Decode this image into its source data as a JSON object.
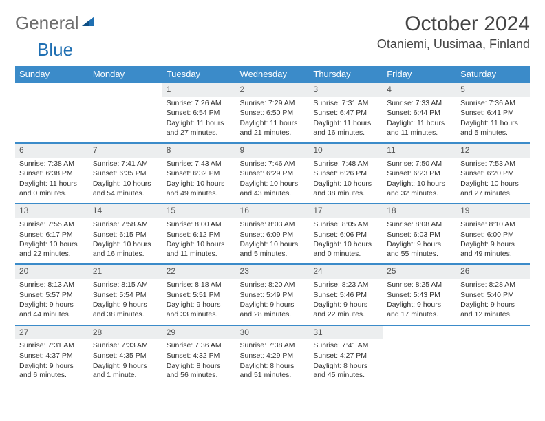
{
  "logo": {
    "part1": "General",
    "part2": "Blue"
  },
  "title": "October 2024",
  "location": "Otaniemi, Uusimaa, Finland",
  "colors": {
    "header_bg": "#3b8bc9",
    "header_text": "#ffffff",
    "daynum_bg": "#eceeef",
    "border": "#3b8bc9",
    "logo_gray": "#6d6d6d",
    "logo_blue": "#1f6fb2"
  },
  "day_headers": [
    "Sunday",
    "Monday",
    "Tuesday",
    "Wednesday",
    "Thursday",
    "Friday",
    "Saturday"
  ],
  "weeks": [
    [
      {
        "n": "",
        "sr": "",
        "ss": "",
        "dl": ""
      },
      {
        "n": "",
        "sr": "",
        "ss": "",
        "dl": ""
      },
      {
        "n": "1",
        "sr": "Sunrise: 7:26 AM",
        "ss": "Sunset: 6:54 PM",
        "dl": "Daylight: 11 hours and 27 minutes."
      },
      {
        "n": "2",
        "sr": "Sunrise: 7:29 AM",
        "ss": "Sunset: 6:50 PM",
        "dl": "Daylight: 11 hours and 21 minutes."
      },
      {
        "n": "3",
        "sr": "Sunrise: 7:31 AM",
        "ss": "Sunset: 6:47 PM",
        "dl": "Daylight: 11 hours and 16 minutes."
      },
      {
        "n": "4",
        "sr": "Sunrise: 7:33 AM",
        "ss": "Sunset: 6:44 PM",
        "dl": "Daylight: 11 hours and 11 minutes."
      },
      {
        "n": "5",
        "sr": "Sunrise: 7:36 AM",
        "ss": "Sunset: 6:41 PM",
        "dl": "Daylight: 11 hours and 5 minutes."
      }
    ],
    [
      {
        "n": "6",
        "sr": "Sunrise: 7:38 AM",
        "ss": "Sunset: 6:38 PM",
        "dl": "Daylight: 11 hours and 0 minutes."
      },
      {
        "n": "7",
        "sr": "Sunrise: 7:41 AM",
        "ss": "Sunset: 6:35 PM",
        "dl": "Daylight: 10 hours and 54 minutes."
      },
      {
        "n": "8",
        "sr": "Sunrise: 7:43 AM",
        "ss": "Sunset: 6:32 PM",
        "dl": "Daylight: 10 hours and 49 minutes."
      },
      {
        "n": "9",
        "sr": "Sunrise: 7:46 AM",
        "ss": "Sunset: 6:29 PM",
        "dl": "Daylight: 10 hours and 43 minutes."
      },
      {
        "n": "10",
        "sr": "Sunrise: 7:48 AM",
        "ss": "Sunset: 6:26 PM",
        "dl": "Daylight: 10 hours and 38 minutes."
      },
      {
        "n": "11",
        "sr": "Sunrise: 7:50 AM",
        "ss": "Sunset: 6:23 PM",
        "dl": "Daylight: 10 hours and 32 minutes."
      },
      {
        "n": "12",
        "sr": "Sunrise: 7:53 AM",
        "ss": "Sunset: 6:20 PM",
        "dl": "Daylight: 10 hours and 27 minutes."
      }
    ],
    [
      {
        "n": "13",
        "sr": "Sunrise: 7:55 AM",
        "ss": "Sunset: 6:17 PM",
        "dl": "Daylight: 10 hours and 22 minutes."
      },
      {
        "n": "14",
        "sr": "Sunrise: 7:58 AM",
        "ss": "Sunset: 6:15 PM",
        "dl": "Daylight: 10 hours and 16 minutes."
      },
      {
        "n": "15",
        "sr": "Sunrise: 8:00 AM",
        "ss": "Sunset: 6:12 PM",
        "dl": "Daylight: 10 hours and 11 minutes."
      },
      {
        "n": "16",
        "sr": "Sunrise: 8:03 AM",
        "ss": "Sunset: 6:09 PM",
        "dl": "Daylight: 10 hours and 5 minutes."
      },
      {
        "n": "17",
        "sr": "Sunrise: 8:05 AM",
        "ss": "Sunset: 6:06 PM",
        "dl": "Daylight: 10 hours and 0 minutes."
      },
      {
        "n": "18",
        "sr": "Sunrise: 8:08 AM",
        "ss": "Sunset: 6:03 PM",
        "dl": "Daylight: 9 hours and 55 minutes."
      },
      {
        "n": "19",
        "sr": "Sunrise: 8:10 AM",
        "ss": "Sunset: 6:00 PM",
        "dl": "Daylight: 9 hours and 49 minutes."
      }
    ],
    [
      {
        "n": "20",
        "sr": "Sunrise: 8:13 AM",
        "ss": "Sunset: 5:57 PM",
        "dl": "Daylight: 9 hours and 44 minutes."
      },
      {
        "n": "21",
        "sr": "Sunrise: 8:15 AM",
        "ss": "Sunset: 5:54 PM",
        "dl": "Daylight: 9 hours and 38 minutes."
      },
      {
        "n": "22",
        "sr": "Sunrise: 8:18 AM",
        "ss": "Sunset: 5:51 PM",
        "dl": "Daylight: 9 hours and 33 minutes."
      },
      {
        "n": "23",
        "sr": "Sunrise: 8:20 AM",
        "ss": "Sunset: 5:49 PM",
        "dl": "Daylight: 9 hours and 28 minutes."
      },
      {
        "n": "24",
        "sr": "Sunrise: 8:23 AM",
        "ss": "Sunset: 5:46 PM",
        "dl": "Daylight: 9 hours and 22 minutes."
      },
      {
        "n": "25",
        "sr": "Sunrise: 8:25 AM",
        "ss": "Sunset: 5:43 PM",
        "dl": "Daylight: 9 hours and 17 minutes."
      },
      {
        "n": "26",
        "sr": "Sunrise: 8:28 AM",
        "ss": "Sunset: 5:40 PM",
        "dl": "Daylight: 9 hours and 12 minutes."
      }
    ],
    [
      {
        "n": "27",
        "sr": "Sunrise: 7:31 AM",
        "ss": "Sunset: 4:37 PM",
        "dl": "Daylight: 9 hours and 6 minutes."
      },
      {
        "n": "28",
        "sr": "Sunrise: 7:33 AM",
        "ss": "Sunset: 4:35 PM",
        "dl": "Daylight: 9 hours and 1 minute."
      },
      {
        "n": "29",
        "sr": "Sunrise: 7:36 AM",
        "ss": "Sunset: 4:32 PM",
        "dl": "Daylight: 8 hours and 56 minutes."
      },
      {
        "n": "30",
        "sr": "Sunrise: 7:38 AM",
        "ss": "Sunset: 4:29 PM",
        "dl": "Daylight: 8 hours and 51 minutes."
      },
      {
        "n": "31",
        "sr": "Sunrise: 7:41 AM",
        "ss": "Sunset: 4:27 PM",
        "dl": "Daylight: 8 hours and 45 minutes."
      },
      {
        "n": "",
        "sr": "",
        "ss": "",
        "dl": ""
      },
      {
        "n": "",
        "sr": "",
        "ss": "",
        "dl": ""
      }
    ]
  ]
}
